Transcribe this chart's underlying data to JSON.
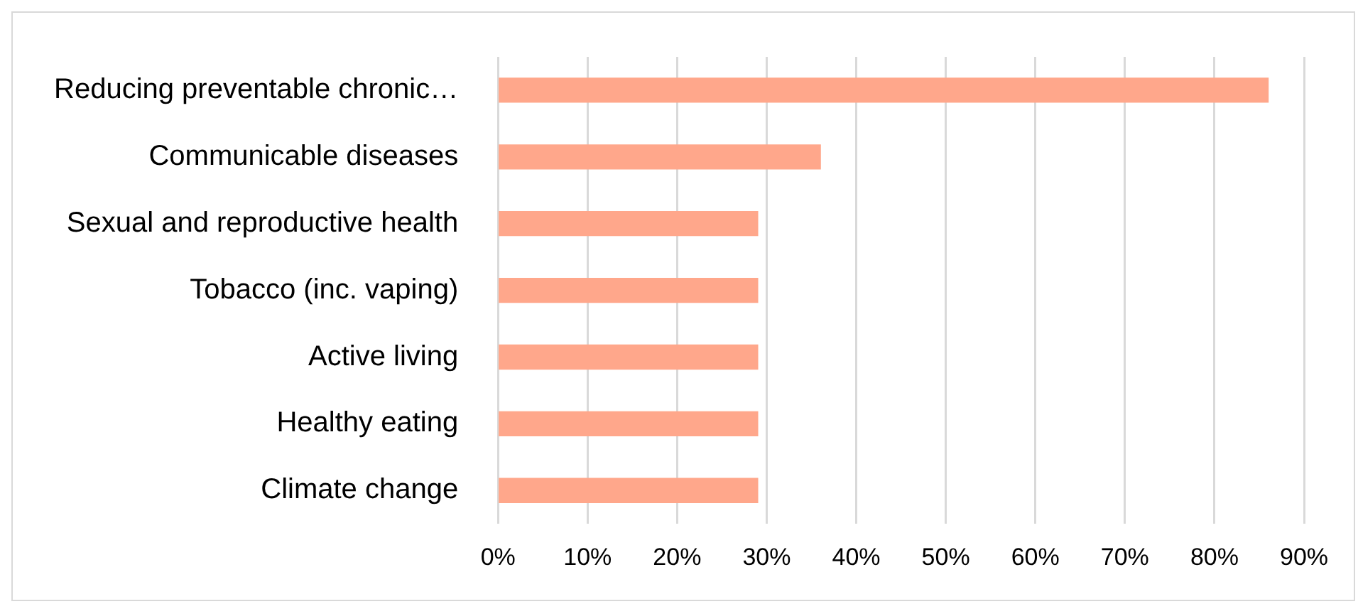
{
  "chart_data": {
    "type": "bar",
    "orientation": "horizontal",
    "categories": [
      "Reducing preventable chronic…",
      "Communicable diseases",
      "Sexual and reproductive health",
      "Tobacco (inc. vaping)",
      "Active living",
      "Healthy eating",
      "Climate change"
    ],
    "values": [
      86,
      36,
      29,
      29,
      29,
      29,
      29
    ],
    "color": "#ffa78b",
    "xlim": [
      0,
      90
    ],
    "xticks": [
      {
        "value": 0,
        "label": "0%"
      },
      {
        "value": 10,
        "label": "10%"
      },
      {
        "value": 20,
        "label": "20%"
      },
      {
        "value": 30,
        "label": "30%"
      },
      {
        "value": 40,
        "label": "40%"
      },
      {
        "value": 50,
        "label": "50%"
      },
      {
        "value": 60,
        "label": "60%"
      },
      {
        "value": 70,
        "label": "70%"
      },
      {
        "value": 80,
        "label": "80%"
      },
      {
        "value": 90,
        "label": "90%"
      }
    ],
    "grid": "x",
    "legend": false
  }
}
